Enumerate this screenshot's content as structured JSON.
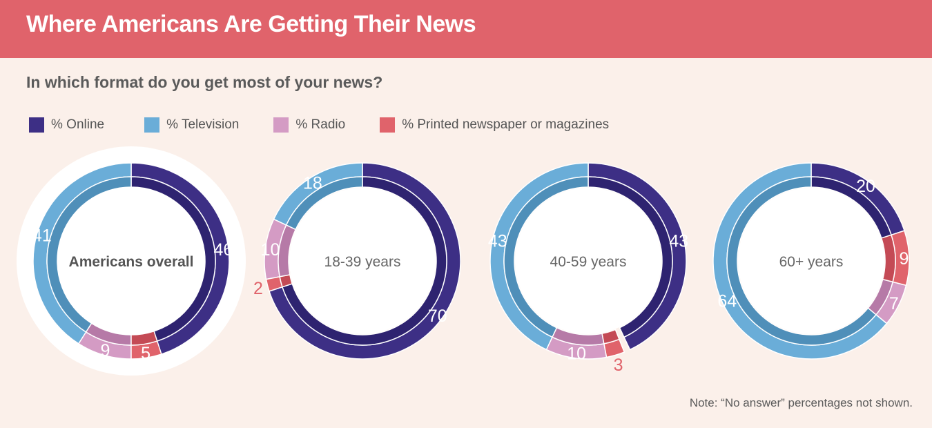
{
  "header": {
    "title": "Where Americans Are Getting Their News"
  },
  "subtitle": "In which format do you get most of your news?",
  "legend": [
    {
      "label": "% Online",
      "color": "#3d2f85"
    },
    {
      "label": "% Television",
      "color": "#6aadd8"
    },
    {
      "label": "% Radio",
      "color": "#d49bc4"
    },
    {
      "label": "% Printed newspaper or magazines",
      "color": "#e0636b"
    }
  ],
  "note": "Note: “No answer” percentages not shown.",
  "chart_data": [
    {
      "type": "pie",
      "title": "Americans overall",
      "highlight": true,
      "categories": [
        "Online",
        "Television",
        "Radio",
        "Printed newspaper or magazines"
      ],
      "values": [
        46,
        41,
        9,
        5
      ]
    },
    {
      "type": "pie",
      "title": "18-39 years",
      "highlight": false,
      "categories": [
        "Online",
        "Television",
        "Radio",
        "Printed newspaper or magazines"
      ],
      "values": [
        70,
        18,
        10,
        2
      ]
    },
    {
      "type": "pie",
      "title": "40-59 years",
      "highlight": false,
      "categories": [
        "Online",
        "Television",
        "Radio",
        "Printed newspaper or magazines"
      ],
      "values": [
        43,
        43,
        10,
        3
      ]
    },
    {
      "type": "pie",
      "title": "60+ years",
      "highlight": false,
      "categories": [
        "Online",
        "Television",
        "Radio",
        "Printed newspaper or magazines"
      ],
      "values": [
        20,
        64,
        7,
        9
      ]
    }
  ]
}
